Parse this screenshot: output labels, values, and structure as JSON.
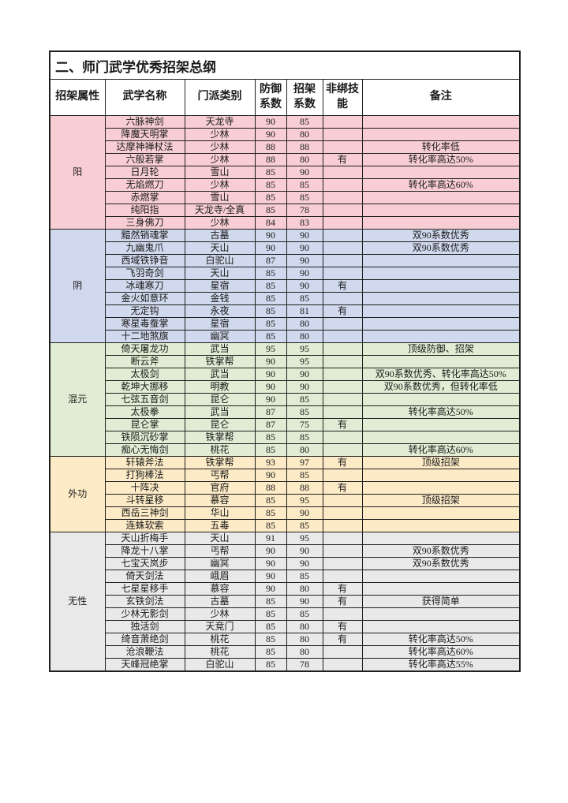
{
  "table": {
    "title": "二、师门武学优秀招架总纲",
    "headers": [
      "招架属性",
      "武学名称",
      "门派类别",
      "防御系数",
      "招架系数",
      "非绑技能",
      "备注"
    ],
    "border_color": "#1f1f1f",
    "groups": [
      {
        "label": "阳",
        "color": "#f8ced4",
        "rows": [
          {
            "name": "六脉神剑",
            "sect": "天龙寺",
            "defense": "90",
            "parry": "85",
            "unbound": "",
            "note": ""
          },
          {
            "name": "降魔天明掌",
            "sect": "少林",
            "defense": "90",
            "parry": "80",
            "unbound": "",
            "note": ""
          },
          {
            "name": "达摩神禅杖法",
            "sect": "少林",
            "defense": "88",
            "parry": "88",
            "unbound": "",
            "note": "转化率低"
          },
          {
            "name": "六般若掌",
            "sect": "少林",
            "defense": "88",
            "parry": "80",
            "unbound": "有",
            "note": "转化率高达50%"
          },
          {
            "name": "日月轮",
            "sect": "雪山",
            "defense": "85",
            "parry": "90",
            "unbound": "",
            "note": ""
          },
          {
            "name": "无焰燃刀",
            "sect": "少林",
            "defense": "85",
            "parry": "85",
            "unbound": "",
            "note": "转化率高达60%"
          },
          {
            "name": "赤燃掌",
            "sect": "雪山",
            "defense": "85",
            "parry": "85",
            "unbound": "",
            "note": ""
          },
          {
            "name": "纯阳指",
            "sect": "天龙寺/全真",
            "defense": "85",
            "parry": "78",
            "unbound": "",
            "note": ""
          },
          {
            "name": "三身佛刀",
            "sect": "少林",
            "defense": "84",
            "parry": "83",
            "unbound": "",
            "note": ""
          }
        ]
      },
      {
        "label": "阴",
        "color": "#d0d9ed",
        "rows": [
          {
            "name": "黯然销魂掌",
            "sect": "古墓",
            "defense": "90",
            "parry": "90",
            "unbound": "",
            "note": "双90系数优秀"
          },
          {
            "name": "九幽鬼爪",
            "sect": "天山",
            "defense": "90",
            "parry": "90",
            "unbound": "",
            "note": "双90系数优秀"
          },
          {
            "name": "西域铁铮音",
            "sect": "白驼山",
            "defense": "87",
            "parry": "90",
            "unbound": "",
            "note": ""
          },
          {
            "name": "飞羽奇剑",
            "sect": "天山",
            "defense": "85",
            "parry": "90",
            "unbound": "",
            "note": ""
          },
          {
            "name": "冰魂寒刀",
            "sect": "星宿",
            "defense": "85",
            "parry": "90",
            "unbound": "有",
            "note": ""
          },
          {
            "name": "金火如意环",
            "sect": "金钱",
            "defense": "85",
            "parry": "85",
            "unbound": "",
            "note": ""
          },
          {
            "name": "无定钩",
            "sect": "永夜",
            "defense": "85",
            "parry": "81",
            "unbound": "有",
            "note": ""
          },
          {
            "name": "寒星毒蚕掌",
            "sect": "星宿",
            "defense": "85",
            "parry": "80",
            "unbound": "",
            "note": ""
          },
          {
            "name": "十二地煞旗",
            "sect": "幽冥",
            "defense": "85",
            "parry": "80",
            "unbound": "",
            "note": ""
          }
        ]
      },
      {
        "label": "混元",
        "color": "#e0edd4",
        "rows": [
          {
            "name": "倚天屠龙功",
            "sect": "武当",
            "defense": "95",
            "parry": "95",
            "unbound": "",
            "note": "顶级防御、招架"
          },
          {
            "name": "断云斧",
            "sect": "铁掌帮",
            "defense": "90",
            "parry": "95",
            "unbound": "",
            "note": ""
          },
          {
            "name": "太极剑",
            "sect": "武当",
            "defense": "90",
            "parry": "90",
            "unbound": "",
            "note": "双90系数优秀、转化率高达50%"
          },
          {
            "name": "乾坤大挪移",
            "sect": "明教",
            "defense": "90",
            "parry": "90",
            "unbound": "",
            "note": "双90系数优秀，但转化率低"
          },
          {
            "name": "七弦五音剑",
            "sect": "昆仑",
            "defense": "90",
            "parry": "85",
            "unbound": "",
            "note": ""
          },
          {
            "name": "太极拳",
            "sect": "武当",
            "defense": "87",
            "parry": "85",
            "unbound": "",
            "note": "转化率高达50%"
          },
          {
            "name": "昆仑掌",
            "sect": "昆仑",
            "defense": "87",
            "parry": "75",
            "unbound": "有",
            "note": ""
          },
          {
            "name": "铁陨沉砂掌",
            "sect": "铁掌帮",
            "defense": "85",
            "parry": "85",
            "unbound": "",
            "note": ""
          },
          {
            "name": "痴心无悔剑",
            "sect": "桃花",
            "defense": "85",
            "parry": "80",
            "unbound": "",
            "note": "转化率高达60%"
          }
        ]
      },
      {
        "label": "外功",
        "color": "#fcebc6",
        "rows": [
          {
            "name": "轩辕斧法",
            "sect": "铁掌帮",
            "defense": "93",
            "parry": "97",
            "unbound": "有",
            "note": "顶级招架"
          },
          {
            "name": "打狗棒法",
            "sect": "丐帮",
            "defense": "90",
            "parry": "85",
            "unbound": "",
            "note": ""
          },
          {
            "name": "十阵决",
            "sect": "官府",
            "defense": "88",
            "parry": "88",
            "unbound": "有",
            "note": ""
          },
          {
            "name": "斗转星移",
            "sect": "慕容",
            "defense": "85",
            "parry": "95",
            "unbound": "",
            "note": "顶级招架"
          },
          {
            "name": "西岳三神剑",
            "sect": "华山",
            "defense": "85",
            "parry": "90",
            "unbound": "",
            "note": ""
          },
          {
            "name": "连蛛软索",
            "sect": "五毒",
            "defense": "85",
            "parry": "85",
            "unbound": "",
            "note": ""
          }
        ]
      },
      {
        "label": "无性",
        "color": "#e9e9e9",
        "rows": [
          {
            "name": "天山折梅手",
            "sect": "天山",
            "defense": "91",
            "parry": "95",
            "unbound": "",
            "note": ""
          },
          {
            "name": "降龙十八掌",
            "sect": "丐帮",
            "defense": "90",
            "parry": "90",
            "unbound": "",
            "note": "双90系数优秀"
          },
          {
            "name": "七宝天岚步",
            "sect": "幽冥",
            "defense": "90",
            "parry": "90",
            "unbound": "",
            "note": "双90系数优秀"
          },
          {
            "name": "倚天剑法",
            "sect": "峨眉",
            "defense": "90",
            "parry": "85",
            "unbound": "",
            "note": ""
          },
          {
            "name": "七星星移手",
            "sect": "慕容",
            "defense": "90",
            "parry": "80",
            "unbound": "有",
            "note": ""
          },
          {
            "name": "玄铁剑法",
            "sect": "古墓",
            "defense": "85",
            "parry": "90",
            "unbound": "有",
            "note": "获得简单"
          },
          {
            "name": "少林无影剑",
            "sect": "少林",
            "defense": "85",
            "parry": "85",
            "unbound": "",
            "note": ""
          },
          {
            "name": "独活剑",
            "sect": "天竞门",
            "defense": "85",
            "parry": "80",
            "unbound": "有",
            "note": ""
          },
          {
            "name": "绮音萧绝剑",
            "sect": "桃花",
            "defense": "85",
            "parry": "80",
            "unbound": "有",
            "note": "转化率高达50%"
          },
          {
            "name": "沧浪鞭法",
            "sect": "桃花",
            "defense": "85",
            "parry": "80",
            "unbound": "",
            "note": "转化率高达60%"
          },
          {
            "name": "天峰冠绝掌",
            "sect": "白驼山",
            "defense": "85",
            "parry": "78",
            "unbound": "",
            "note": "转化率高达55%"
          }
        ]
      }
    ]
  }
}
